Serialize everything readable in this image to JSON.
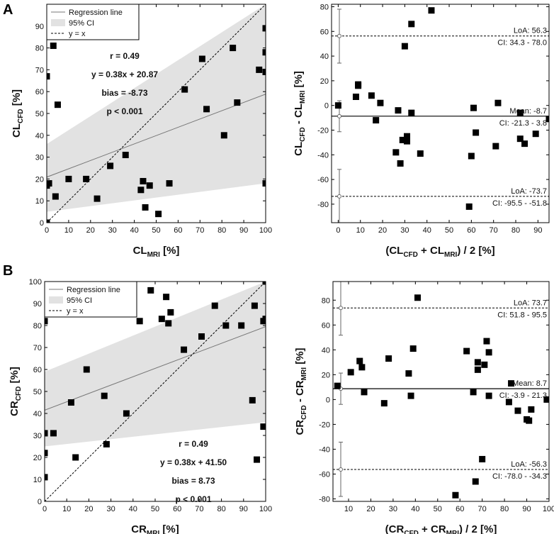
{
  "figure": {
    "panel_labels": [
      "A",
      "B"
    ]
  },
  "chart_data": [
    {
      "id": "A-scatter",
      "type": "scatter",
      "xlabel_main": "CL",
      "xlabel_sub": "MRI",
      "xlabel_unit": " [%]",
      "ylabel_main": "CL",
      "ylabel_sub": "CFD",
      "ylabel_unit": " [%]",
      "xlim": [
        0,
        100
      ],
      "ylim": [
        0,
        100
      ],
      "xticks": [
        0,
        10,
        20,
        30,
        40,
        50,
        60,
        70,
        80,
        90,
        100
      ],
      "yticks": [
        0,
        10,
        20,
        30,
        40,
        50,
        60,
        70,
        80,
        90
      ],
      "legend": [
        "Regression line",
        "95% CI",
        "y = x"
      ],
      "stats": [
        "r = 0.49",
        "y = 0.38x + 20.87",
        "bias = -8.73",
        "p < 0.001"
      ],
      "regression": {
        "slope": 0.38,
        "intercept": 20.87
      },
      "ci_band": {
        "x": [
          0,
          100
        ],
        "upper": [
          36,
          100
        ],
        "lower": [
          5,
          18
        ]
      },
      "points": [
        [
          0,
          0
        ],
        [
          0,
          67
        ],
        [
          0,
          17
        ],
        [
          1,
          18
        ],
        [
          3,
          81
        ],
        [
          4,
          12
        ],
        [
          5,
          54
        ],
        [
          10,
          20
        ],
        [
          18,
          20
        ],
        [
          23,
          11
        ],
        [
          29,
          26
        ],
        [
          36,
          31
        ],
        [
          43,
          15
        ],
        [
          44,
          19
        ],
        [
          45,
          7
        ],
        [
          47,
          17
        ],
        [
          51,
          4
        ],
        [
          56,
          18
        ],
        [
          63,
          61
        ],
        [
          71,
          75
        ],
        [
          73,
          52
        ],
        [
          81,
          40
        ],
        [
          85,
          80
        ],
        [
          87,
          55
        ],
        [
          97,
          70
        ],
        [
          100,
          89
        ],
        [
          100,
          78
        ],
        [
          100,
          69
        ],
        [
          100,
          18
        ]
      ]
    },
    {
      "id": "A-bland",
      "type": "scatter",
      "xlabel_main": "(CL",
      "xlabel_sub1": "CFD",
      "xlabel_mid": " + CL",
      "xlabel_sub2": "MRI",
      "xlabel_unit": ") / 2 [%]",
      "ylabel_main": "CL",
      "ylabel_sub1": "CFD",
      "ylabel_mid": " - CL",
      "ylabel_sub2": "MRI",
      "ylabel_unit": " [%]",
      "xlim": [
        -3,
        95
      ],
      "ylim": [
        -95,
        82
      ],
      "xticks": [
        0,
        10,
        20,
        30,
        40,
        50,
        60,
        70,
        80,
        90
      ],
      "yticks": [
        -80,
        -60,
        -40,
        -20,
        0,
        20,
        40,
        60,
        80
      ],
      "mean": {
        "value": -8.7,
        "label": "Mean: -8.7",
        "ci_label": "CI: -21.3 - 3.8",
        "ci": [
          -21.3,
          3.8
        ]
      },
      "loa_upper": {
        "value": 56.3,
        "label": "LoA: 56.3",
        "ci_label": "CI: 34.3 - 78.0",
        "ci": [
          34.3,
          78.0
        ]
      },
      "loa_lower": {
        "value": -73.7,
        "label": "LoA: -73.7",
        "ci_label": "CI: -95.5 - -51.8",
        "ci": [
          -95.5,
          -51.8
        ]
      },
      "points": [
        [
          0,
          0
        ],
        [
          8,
          7
        ],
        [
          9,
          17
        ],
        [
          9,
          16
        ],
        [
          15,
          8
        ],
        [
          17,
          -12
        ],
        [
          19,
          2
        ],
        [
          26,
          -38
        ],
        [
          27,
          -4
        ],
        [
          28,
          -47
        ],
        [
          29,
          -28
        ],
        [
          30,
          48
        ],
        [
          31,
          -25
        ],
        [
          31,
          -29
        ],
        [
          33,
          66
        ],
        [
          33,
          -6
        ],
        [
          37,
          -39
        ],
        [
          42,
          77
        ],
        [
          59,
          -82
        ],
        [
          60,
          -41
        ],
        [
          61,
          -2
        ],
        [
          62,
          -22
        ],
        [
          71,
          -33
        ],
        [
          72,
          2
        ],
        [
          82,
          -6
        ],
        [
          82,
          -27
        ],
        [
          84,
          -31
        ],
        [
          89,
          -23
        ],
        [
          95,
          -11
        ]
      ]
    },
    {
      "id": "B-scatter",
      "type": "scatter",
      "xlabel_main": "CR",
      "xlabel_sub": "MRI",
      "xlabel_unit": " [%]",
      "ylabel_main": "CR",
      "ylabel_sub": "CFD",
      "ylabel_unit": " [%]",
      "xlim": [
        0,
        100
      ],
      "ylim": [
        0,
        100
      ],
      "xticks": [
        0,
        10,
        20,
        30,
        40,
        50,
        60,
        70,
        80,
        90,
        100
      ],
      "yticks": [
        0,
        10,
        20,
        30,
        40,
        50,
        60,
        70,
        80,
        90,
        100
      ],
      "legend": [
        "Regression line",
        "95% CI",
        "y = x"
      ],
      "stats": [
        "r = 0.49",
        "y = 0.38x + 41.50",
        "bias = 8.73",
        "p < 0.001"
      ],
      "regression": {
        "slope": 0.38,
        "intercept": 41.5
      },
      "ci_band": {
        "x": [
          0,
          100
        ],
        "upper": [
          59,
          100
        ],
        "lower": [
          25,
          36
        ]
      },
      "points": [
        [
          0,
          82
        ],
        [
          0,
          31
        ],
        [
          0,
          22
        ],
        [
          0,
          11
        ],
        [
          4,
          31
        ],
        [
          12,
          45
        ],
        [
          14,
          20
        ],
        [
          19,
          60
        ],
        [
          27,
          48
        ],
        [
          28,
          26
        ],
        [
          37,
          40
        ],
        [
          43,
          82
        ],
        [
          48,
          96
        ],
        [
          53,
          83
        ],
        [
          55,
          93
        ],
        [
          56,
          81
        ],
        [
          57,
          86
        ],
        [
          63,
          69
        ],
        [
          71,
          75
        ],
        [
          77,
          89
        ],
        [
          82,
          80
        ],
        [
          89,
          80
        ],
        [
          94,
          46
        ],
        [
          96,
          19
        ],
        [
          95,
          89
        ],
        [
          99,
          82
        ],
        [
          100,
          83
        ],
        [
          99,
          34
        ],
        [
          100,
          100
        ]
      ]
    },
    {
      "id": "B-bland",
      "type": "scatter",
      "xlabel_main": "(CR",
      "xlabel_sub1": "CFD",
      "xlabel_mid": " + CR",
      "xlabel_sub2": "MRI",
      "xlabel_unit": ") / 2 [%]",
      "ylabel_main": "CR",
      "ylabel_sub1": "CFD",
      "ylabel_mid": " - CR",
      "ylabel_sub2": "MRI",
      "ylabel_unit": " [%]",
      "xlim": [
        3,
        100
      ],
      "ylim": [
        -82,
        95
      ],
      "xticks": [
        10,
        20,
        30,
        40,
        50,
        60,
        70,
        80,
        90,
        100
      ],
      "yticks": [
        -80,
        -60,
        -40,
        -20,
        0,
        20,
        40,
        60,
        80
      ],
      "mean": {
        "value": 8.7,
        "label": "Mean: 8.7",
        "ci_label": "CI: -3.9 - 21.3",
        "ci": [
          -3.9,
          21.3
        ]
      },
      "loa_upper": {
        "value": 73.7,
        "label": "LoA: 73.7",
        "ci_label": "CI: 51.8 - 95.5",
        "ci": [
          51.8,
          95.5
        ]
      },
      "loa_lower": {
        "value": -56.3,
        "label": "LoA: -56.3",
        "ci_label": "CI: -78.0 - -34.3",
        "ci": [
          -78.0,
          -34.3
        ]
      },
      "points": [
        [
          5,
          11
        ],
        [
          11,
          22
        ],
        [
          15,
          31
        ],
        [
          16,
          26
        ],
        [
          17,
          6
        ],
        [
          26,
          -3
        ],
        [
          28,
          33
        ],
        [
          37,
          21
        ],
        [
          38,
          3
        ],
        [
          39,
          41
        ],
        [
          41,
          82
        ],
        [
          58,
          -77
        ],
        [
          63,
          39
        ],
        [
          66,
          6
        ],
        [
          67,
          -66
        ],
        [
          68,
          30
        ],
        [
          68,
          24
        ],
        [
          70,
          -48
        ],
        [
          71,
          28
        ],
        [
          72,
          47
        ],
        [
          73,
          38
        ],
        [
          73,
          3
        ],
        [
          82,
          -2
        ],
        [
          83,
          13
        ],
        [
          86,
          -9
        ],
        [
          90,
          -16
        ],
        [
          91,
          -17
        ],
        [
          92,
          -8
        ],
        [
          99,
          0
        ]
      ]
    }
  ]
}
